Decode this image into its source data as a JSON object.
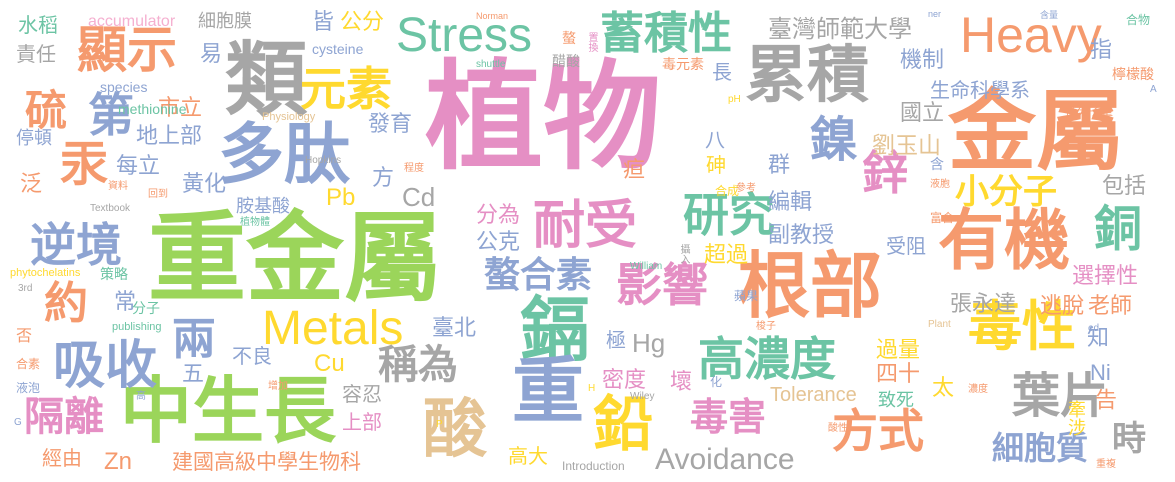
{
  "words": {
    "w1": {
      "text": "植物",
      "color": "#e58fc4"
    },
    "w2": {
      "text": "重金屬",
      "color": "#9bd55a"
    },
    "w3": {
      "text": "金屬",
      "color": "#f59a6e"
    },
    "w4": {
      "text": "類",
      "color": "#a6a6a6"
    },
    "w5": {
      "text": "多肽",
      "color": "#8ea4d2"
    },
    "w6": {
      "text": "累積",
      "color": "#a6a6a6"
    },
    "w7": {
      "text": "根部",
      "color": "#f59a6e"
    },
    "w8": {
      "text": "有機",
      "color": "#f59a6e"
    },
    "w9": {
      "text": "中生長",
      "color": "#9bd55a"
    },
    "w10": {
      "text": "鎘",
      "color": "#6cc4a4"
    },
    "w11": {
      "text": "重",
      "color": "#8ea4d2"
    },
    "w12": {
      "text": "酸",
      "color": "#e5c494"
    },
    "w13": {
      "text": "鉛",
      "color": "#ffd92f"
    },
    "w14": {
      "text": "Metals",
      "color": "#ffd92f"
    },
    "w15": {
      "text": "Stress",
      "color": "#6cc4a4"
    },
    "w16": {
      "text": "Heavy",
      "color": "#f59a6e"
    },
    "w17": {
      "text": "耐受",
      "color": "#e58fc4"
    },
    "w18": {
      "text": "毒性",
      "color": "#ffd92f"
    },
    "w19": {
      "text": "顯示",
      "color": "#f59a6e"
    },
    "w20": {
      "text": "蓄積性",
      "color": "#6cc4a4"
    },
    "w21": {
      "text": "元素",
      "color": "#ffd92f"
    },
    "w22": {
      "text": "吸收",
      "color": "#8ea4d2"
    },
    "w23": {
      "text": "逆境",
      "color": "#8ea4d2"
    },
    "w24": {
      "text": "研究",
      "color": "#6cc4a4"
    },
    "w25": {
      "text": "影響",
      "color": "#e58fc4"
    },
    "w26": {
      "text": "高濃度",
      "color": "#6cc4a4"
    },
    "w27": {
      "text": "葉片",
      "color": "#a6a6a6"
    },
    "w28": {
      "text": "方式",
      "color": "#f59a6e"
    },
    "w29": {
      "text": "毒害",
      "color": "#e58fc4"
    },
    "w30": {
      "text": "隔離",
      "color": "#e58fc4"
    },
    "w31": {
      "text": "螯合素",
      "color": "#8ea4d2"
    },
    "w32": {
      "text": "稱為",
      "color": "#a6a6a6"
    },
    "w33": {
      "text": "汞",
      "color": "#f59a6e"
    },
    "w34": {
      "text": "硫",
      "color": "#f59a6e"
    },
    "w35": {
      "text": "約",
      "color": "#f59a6e"
    },
    "w36": {
      "text": "第",
      "color": "#8ea4d2"
    },
    "w37": {
      "text": "兩",
      "color": "#8ea4d2"
    },
    "w38": {
      "text": "小分子",
      "color": "#ffd92f"
    },
    "w39": {
      "text": "細胞質",
      "color": "#8ea4d2"
    },
    "w40": {
      "text": "鋅",
      "color": "#e58fc4"
    },
    "w41": {
      "text": "鎳",
      "color": "#8ea4d2"
    },
    "w42": {
      "text": "銅",
      "color": "#6cc4a4"
    },
    "w43": {
      "text": "時",
      "color": "#a6a6a6"
    },
    "w44": {
      "text": "Avoidance",
      "color": "#a6a6a6"
    },
    "w45": {
      "text": "臺灣師範大學",
      "color": "#a6a6a6"
    },
    "w46": {
      "text": "建國高級中學生物科",
      "color": "#f59a6e"
    },
    "w47": {
      "text": "生命科學系",
      "color": "#8ea4d2"
    },
    "w48": {
      "text": "機制",
      "color": "#8ea4d2"
    },
    "w49": {
      "text": "國立",
      "color": "#a6a6a6"
    },
    "w50": {
      "text": "劉玉山",
      "color": "#e5c494"
    },
    "w51": {
      "text": "編輯",
      "color": "#8ea4d2"
    },
    "w52": {
      "text": "副教授",
      "color": "#8ea4d2"
    },
    "w53": {
      "text": "張永達",
      "color": "#a6a6a6"
    },
    "w54": {
      "text": "老師",
      "color": "#f59a6e"
    },
    "w55": {
      "text": "選擇性",
      "color": "#e58fc4"
    },
    "w56": {
      "text": "包括",
      "color": "#a6a6a6"
    },
    "w57": {
      "text": "水稻",
      "color": "#6cc4a4"
    },
    "w58": {
      "text": "責任",
      "color": "#a6a6a6"
    },
    "w59": {
      "text": "停頓",
      "color": "#8ea4d2"
    },
    "w60": {
      "text": "泛",
      "color": "#f59a6e"
    },
    "w61": {
      "text": "每立",
      "color": "#8ea4d2"
    },
    "w62": {
      "text": "黃化",
      "color": "#8ea4d2"
    },
    "w63": {
      "text": "地上部",
      "color": "#8ea4d2"
    },
    "w64": {
      "text": "市立",
      "color": "#f59a6e"
    },
    "w65": {
      "text": "細胞膜",
      "color": "#a6a6a6"
    },
    "w66": {
      "text": "皆",
      "color": "#8ea4d2"
    },
    "w67": {
      "text": "公分",
      "color": "#ffd92f"
    },
    "w68": {
      "text": "易",
      "color": "#8ea4d2"
    },
    "w69": {
      "text": "發育",
      "color": "#8ea4d2"
    },
    "w70": {
      "text": "分為",
      "color": "#e58fc4"
    },
    "w71": {
      "text": "公克",
      "color": "#8ea4d2"
    },
    "w72": {
      "text": "臺北",
      "color": "#8ea4d2"
    },
    "w73": {
      "text": "密度",
      "color": "#e58fc4"
    },
    "w74": {
      "text": "壞",
      "color": "#e58fc4"
    },
    "w75": {
      "text": "Hg",
      "color": "#a6a6a6"
    },
    "w76": {
      "text": "Cd",
      "color": "#a6a6a6"
    },
    "w77": {
      "text": "Pb",
      "color": "#ffd92f"
    },
    "w78": {
      "text": "Cu",
      "color": "#ffd92f"
    },
    "w79": {
      "text": "Zn",
      "color": "#f59a6e"
    },
    "w80": {
      "text": "Ni",
      "color": "#8ea4d2"
    },
    "w81": {
      "text": "Tolerance",
      "color": "#e5c494"
    },
    "w82": {
      "text": "過量",
      "color": "#ffd92f"
    },
    "w83": {
      "text": "四十",
      "color": "#f59a6e"
    },
    "w84": {
      "text": "太",
      "color": "#ffd92f"
    },
    "w85": {
      "text": "致死",
      "color": "#6cc4a4"
    },
    "w86": {
      "text": "牽涉",
      "color": "#ffd92f"
    },
    "w87": {
      "text": "告",
      "color": "#f59a6e"
    },
    "w88": {
      "text": "知",
      "color": "#8ea4d2"
    },
    "w89": {
      "text": "指",
      "color": "#8ea4d2"
    },
    "w90": {
      "text": "逃脫",
      "color": "#f59a6e"
    },
    "w91": {
      "text": "受阻",
      "color": "#8ea4d2"
    },
    "w92": {
      "text": "群",
      "color": "#8ea4d2"
    },
    "w93": {
      "text": "砷",
      "color": "#ffd92f"
    },
    "w94": {
      "text": "疸",
      "color": "#f59a6e"
    },
    "w95": {
      "text": "八",
      "color": "#8ea4d2"
    },
    "w96": {
      "text": "長",
      "color": "#8ea4d2"
    },
    "w97": {
      "text": "超過",
      "color": "#ffd92f"
    },
    "w98": {
      "text": "方",
      "color": "#8ea4d2"
    },
    "w99": {
      "text": "胺基酸",
      "color": "#8ea4d2"
    },
    "w100": {
      "text": "不良",
      "color": "#8ea4d2"
    },
    "w101": {
      "text": "五",
      "color": "#8ea4d2"
    },
    "w102": {
      "text": "容忍",
      "color": "#a6a6a6"
    },
    "w103": {
      "text": "上部",
      "color": "#e58fc4"
    },
    "w104": {
      "text": "經由",
      "color": "#f59a6e"
    },
    "w105": {
      "text": "高大",
      "color": "#ffd92f"
    },
    "w106": {
      "text": "極",
      "color": "#8ea4d2"
    },
    "w107": {
      "text": "常",
      "color": "#8ea4d2"
    },
    "w108": {
      "text": "策略",
      "color": "#6cc4a4"
    },
    "w109": {
      "text": "分子",
      "color": "#6cc4a4"
    },
    "w110": {
      "text": "否",
      "color": "#f59a6e"
    },
    "w111": {
      "text": "accumulator",
      "color": "#f5b0d0"
    },
    "w112": {
      "text": "cysteine",
      "color": "#8ea4d2"
    },
    "w113": {
      "text": "species",
      "color": "#8ea4d2"
    },
    "w114": {
      "text": "methionine",
      "color": "#6cc4a4"
    },
    "w115": {
      "text": "Physiology",
      "color": "#e5c494"
    },
    "w116": {
      "text": "Hopkins",
      "color": "#a6a6a6"
    },
    "w117": {
      "text": "Textbook",
      "color": "#a6a6a6"
    },
    "w118": {
      "text": "phytochelatins",
      "color": "#ffd92f"
    },
    "w119": {
      "text": "3rd",
      "color": "#a6a6a6"
    },
    "w120": {
      "text": "publishing",
      "color": "#6cc4a4"
    },
    "w121": {
      "text": "William",
      "color": "#6cc4a4"
    },
    "w122": {
      "text": "Norman",
      "color": "#f59a6e"
    },
    "w123": {
      "text": "shuttle",
      "color": "#6cc4a4"
    },
    "w124": {
      "text": "Introduction",
      "color": "#a6a6a6"
    },
    "w125": {
      "text": "Wiley",
      "color": "#a6a6a6"
    },
    "w126": {
      "text": "Plant",
      "color": "#e5c494"
    },
    "w127": {
      "text": "pH",
      "color": "#ffd92f"
    },
    "w128": {
      "text": "ed",
      "color": "#8ea4d2"
    },
    "w129": {
      "text": "ner",
      "color": "#8ea4d2"
    },
    "w130": {
      "text": "A",
      "color": "#8ea4d2"
    },
    "w131": {
      "text": "H",
      "color": "#ffd92f"
    },
    "w132": {
      "text": "G",
      "color": "#8ea4d2"
    },
    "w133": {
      "text": "P",
      "color": "#ffd92f"
    },
    "w134": {
      "text": "毒元素",
      "color": "#f59a6e"
    },
    "w135": {
      "text": "醋酸",
      "color": "#a6a6a6"
    },
    "w136": {
      "text": "螯",
      "color": "#f59a6e"
    },
    "w137": {
      "text": "置換",
      "color": "#e58fc4"
    },
    "w138": {
      "text": "低分子量",
      "color": "#f59a6e"
    },
    "w139": {
      "text": "檸檬酸",
      "color": "#f59a6e"
    },
    "w140": {
      "text": "含量",
      "color": "#8ea4d2"
    },
    "w141": {
      "text": "合物",
      "color": "#6cc4a4"
    },
    "w142": {
      "text": "合成",
      "color": "#ffd92f"
    },
    "w143": {
      "text": "參考",
      "color": "#f59a6e"
    },
    "w144": {
      "text": "液胞",
      "color": "#f59a6e"
    },
    "w145": {
      "text": "富含",
      "color": "#f59a6e"
    },
    "w146": {
      "text": "含",
      "color": "#8ea4d2"
    },
    "w147": {
      "text": "回到",
      "color": "#f59a6e"
    },
    "w148": {
      "text": "資料",
      "color": "#f59a6e"
    },
    "w149": {
      "text": "程度",
      "color": "#f59a6e"
    },
    "w150": {
      "text": "植物體",
      "color": "#6cc4a4"
    },
    "w151": {
      "text": "攝入",
      "color": "#a6a6a6"
    },
    "w152": {
      "text": "蘋果",
      "color": "#8ea4d2"
    },
    "w153": {
      "text": "梭子",
      "color": "#f59a6e"
    },
    "w154": {
      "text": "合素",
      "color": "#f59a6e"
    },
    "w155": {
      "text": "增加",
      "color": "#f59a6e"
    },
    "w156": {
      "text": "液泡",
      "color": "#8ea4d2"
    },
    "w157": {
      "text": "高",
      "color": "#8ea4d2"
    },
    "w158": {
      "text": "化",
      "color": "#8ea4d2"
    },
    "w159": {
      "text": "濃度",
      "color": "#f59a6e"
    },
    "w160": {
      "text": "酸性",
      "color": "#f59a6e"
    },
    "w161": {
      "text": "重複",
      "color": "#f59a6e"
    }
  }
}
